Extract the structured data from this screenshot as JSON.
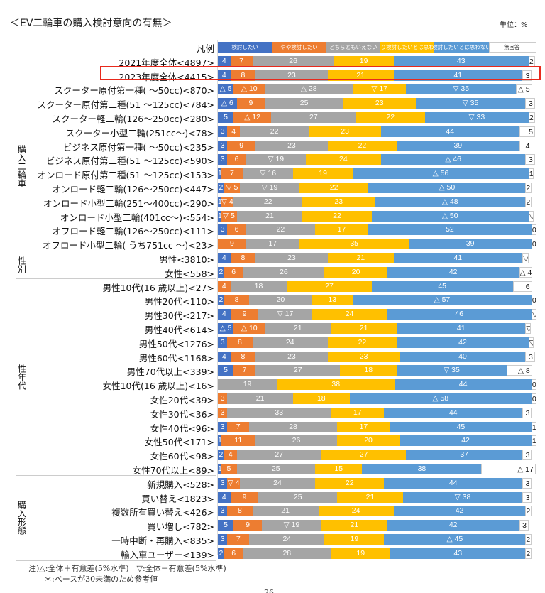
{
  "header": {
    "title": "＜EV二輪車の購入検討意向の有無＞",
    "unit": "単位：%"
  },
  "chart_data": {
    "type": "bar",
    "orientation": "horizontal",
    "stacked": true,
    "xlim": [
      0,
      100
    ],
    "legend_label": "凡例",
    "series": [
      {
        "name": "検討したい",
        "color": "#4472C4"
      },
      {
        "name": "やや検討したい",
        "color": "#ED7D31"
      },
      {
        "name": "どちらともいえない",
        "color": "#A5A5A5"
      },
      {
        "name": "あまり検討したいとは思わない",
        "color": "#FFC000"
      },
      {
        "name": "検討したいとは思わない",
        "color": "#5B9BD5"
      },
      {
        "name": "無回答",
        "color": "#FFFFFF"
      }
    ],
    "groups": [
      {
        "name": "",
        "rows": [
          {
            "label": "2021年度全体<4897>",
            "values": [
              4,
              7,
              26,
              19,
              43,
              2
            ],
            "marks": [
              "",
              "",
              "",
              "",
              "",
              ""
            ]
          },
          {
            "label": "2023年度全体<4415>",
            "values": [
              4,
              8,
              23,
              21,
              41,
              3
            ],
            "marks": [
              "",
              "",
              "",
              "",
              "",
              ""
            ],
            "highlight": true
          }
        ]
      },
      {
        "name": "購入二輪車",
        "rows": [
          {
            "label": "スクーター原付第一種( ～50cc)<870>",
            "values": [
              5,
              10,
              28,
              17,
              35,
              5
            ],
            "marks": [
              "△",
              "△",
              "△",
              "▽",
              "▽",
              "△"
            ]
          },
          {
            "label": "スクーター原付第二種(51 ～125cc)<784>",
            "values": [
              6,
              9,
              25,
              23,
              35,
              3
            ],
            "marks": [
              "△",
              "",
              "",
              "",
              "▽",
              ""
            ]
          },
          {
            "label": "スクーター軽二輪(126～250cc)<280>",
            "values": [
              5,
              12,
              27,
              22,
              33,
              2
            ],
            "marks": [
              "",
              "△",
              "",
              "",
              "▽",
              ""
            ]
          },
          {
            "label": "スクーター小型二輪(251cc～)<78>",
            "values": [
              3,
              4,
              22,
              23,
              44,
              5
            ],
            "marks": [
              "",
              "",
              "",
              "",
              "",
              ""
            ]
          },
          {
            "label": "ビジネス原付第一種( ～50cc)<235>",
            "values": [
              3,
              9,
              23,
              22,
              39,
              4
            ],
            "marks": [
              "",
              "",
              "",
              "",
              "",
              ""
            ]
          },
          {
            "label": "ビジネス原付第二種(51 ～125cc)<590>",
            "values": [
              3,
              6,
              19,
              24,
              46,
              3
            ],
            "marks": [
              "",
              "",
              "▽",
              "",
              "△",
              ""
            ]
          },
          {
            "label": "オンロード原付第二種(51 ～125cc)<153>",
            "values": [
              1,
              7,
              16,
              19,
              56,
              1
            ],
            "marks": [
              "",
              "",
              "▽",
              "",
              "△",
              ""
            ]
          },
          {
            "label": "オンロード軽二輪(126～250cc)<447>",
            "values": [
              2,
              5,
              19,
              22,
              50,
              2
            ],
            "marks": [
              "",
              "▽",
              "▽",
              "",
              "△",
              ""
            ]
          },
          {
            "label": "オンロード小型二輪(251～400cc)<290>",
            "values": [
              1,
              4,
              22,
              23,
              48,
              2
            ],
            "marks": [
              "",
              "▽",
              "",
              "",
              "△",
              ""
            ]
          },
          {
            "label": "オンロード小型二輪(401cc～)<554>",
            "values": [
              1,
              5,
              21,
              22,
              50,
              1
            ],
            "marks": [
              "",
              "▽",
              "",
              "",
              "△",
              "▽"
            ]
          },
          {
            "label": "オフロード軽二輪(126～250cc)<111>",
            "values": [
              3,
              6,
              22,
              17,
              52,
              0
            ],
            "marks": [
              "",
              "",
              "",
              "",
              "",
              ""
            ]
          },
          {
            "label": "オフロード小型二輪( うち751cc ～)<23>",
            "values": [
              0,
              9,
              17,
              35,
              39,
              0
            ],
            "marks": [
              "",
              "",
              "",
              "",
              "",
              ""
            ]
          }
        ]
      },
      {
        "name": "性別",
        "rows": [
          {
            "label": "男性<3810>",
            "values": [
              4,
              8,
              23,
              21,
              41,
              2
            ],
            "marks": [
              "",
              "",
              "",
              "",
              "",
              "▽"
            ]
          },
          {
            "label": "女性<558>",
            "values": [
              2,
              6,
              26,
              20,
              42,
              4
            ],
            "marks": [
              "",
              "",
              "",
              "",
              "",
              "△"
            ]
          }
        ]
      },
      {
        "name": "性年代",
        "rows": [
          {
            "label": "男性10代(16 歳以上)<27>",
            "values": [
              0,
              4,
              18,
              27,
              45,
              6
            ],
            "marks": [
              "",
              "",
              "",
              "",
              "",
              ""
            ]
          },
          {
            "label": "男性20代<110>",
            "values": [
              2,
              8,
              20,
              13,
              57,
              0
            ],
            "marks": [
              "",
              "",
              "",
              "",
              "△",
              ""
            ]
          },
          {
            "label": "男性30代<217>",
            "values": [
              4,
              9,
              17,
              24,
              46,
              0
            ],
            "marks": [
              "",
              "",
              "▽",
              "",
              "",
              "▽"
            ]
          },
          {
            "label": "男性40代<614>",
            "values": [
              5,
              10,
              21,
              21,
              41,
              1
            ],
            "marks": [
              "△",
              "△",
              "",
              "",
              "",
              "▽"
            ]
          },
          {
            "label": "男性50代<1276>",
            "values": [
              3,
              8,
              24,
              22,
              42,
              1
            ],
            "marks": [
              "",
              "",
              "",
              "",
              "",
              "▽"
            ]
          },
          {
            "label": "男性60代<1168>",
            "values": [
              4,
              8,
              23,
              23,
              40,
              3
            ],
            "marks": [
              "",
              "",
              "",
              "",
              "",
              ""
            ]
          },
          {
            "label": "男性70代以上<339>",
            "values": [
              5,
              7,
              27,
              18,
              35,
              8
            ],
            "marks": [
              "",
              "",
              "",
              "",
              "▽",
              "△"
            ]
          },
          {
            "label": "女性10代(16 歳以上)<16>",
            "values": [
              0,
              0,
              19,
              38,
              44,
              0
            ],
            "marks": [
              "",
              "",
              "",
              "",
              "",
              ""
            ]
          },
          {
            "label": "女性20代<39>",
            "values": [
              0,
              3,
              21,
              18,
              58,
              0
            ],
            "marks": [
              "",
              "",
              "",
              "",
              "△",
              ""
            ]
          },
          {
            "label": "女性30代<36>",
            "values": [
              0,
              3,
              33,
              17,
              44,
              3
            ],
            "marks": [
              "",
              "",
              "",
              "",
              "",
              ""
            ]
          },
          {
            "label": "女性40代<96>",
            "values": [
              3,
              7,
              28,
              17,
              45,
              1
            ],
            "marks": [
              "",
              "",
              "",
              "",
              "",
              ""
            ]
          },
          {
            "label": "女性50代<171>",
            "values": [
              1,
              11,
              26,
              20,
              42,
              1
            ],
            "marks": [
              "",
              "",
              "",
              "",
              "",
              ""
            ]
          },
          {
            "label": "女性60代<98>",
            "values": [
              2,
              4,
              27,
              27,
              37,
              3
            ],
            "marks": [
              "",
              "",
              "",
              "",
              "",
              ""
            ]
          },
          {
            "label": "女性70代以上<89>",
            "values": [
              1,
              5,
              25,
              15,
              38,
              17
            ],
            "marks": [
              "",
              "",
              "",
              "",
              "",
              "△"
            ]
          }
        ]
      },
      {
        "name": "購入形態",
        "rows": [
          {
            "label": "新規購入<528>",
            "values": [
              3,
              4,
              24,
              22,
              44,
              3
            ],
            "marks": [
              "",
              "▽",
              "",
              "",
              "",
              ""
            ]
          },
          {
            "label": "買い替え<1823>",
            "values": [
              4,
              9,
              25,
              21,
              38,
              3
            ],
            "marks": [
              "",
              "",
              "",
              "",
              "▽",
              ""
            ]
          },
          {
            "label": "複数所有買い替え<426>",
            "values": [
              3,
              8,
              21,
              24,
              42,
              2
            ],
            "marks": [
              "",
              "",
              "",
              "",
              "",
              ""
            ]
          },
          {
            "label": "買い増し<782>",
            "values": [
              5,
              9,
              19,
              21,
              42,
              3
            ],
            "marks": [
              "",
              "",
              "▽",
              "",
              "",
              ""
            ]
          },
          {
            "label": "一時中断・再購入<835>",
            "values": [
              3,
              7,
              24,
              19,
              45,
              2
            ],
            "marks": [
              "",
              "",
              "",
              "",
              "△",
              ""
            ]
          },
          {
            "label": "輸入車ユーザー<139>",
            "values": [
              2,
              6,
              28,
              19,
              43,
              2
            ],
            "marks": [
              "",
              "",
              "",
              "",
              "",
              ""
            ]
          }
        ]
      }
    ]
  },
  "notes": [
    "注)△:全体＋有意差(5%水準)　▽:全体－有意差(5%水準)",
    "＊:ベースが30未満のため参考値"
  ],
  "page_number": "26"
}
